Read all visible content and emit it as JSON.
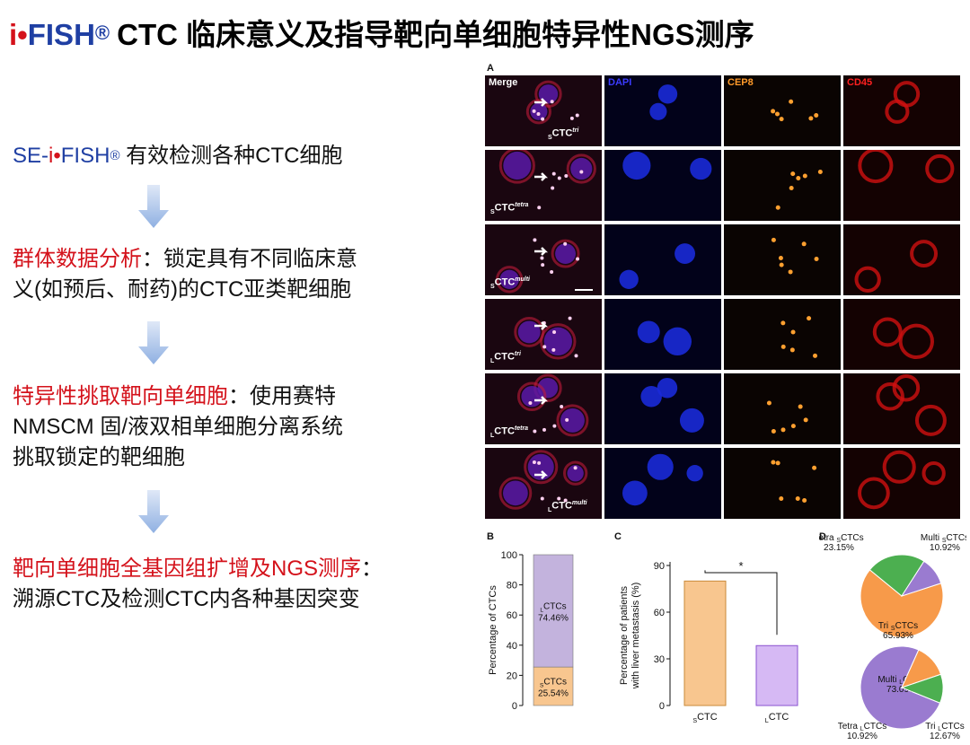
{
  "title": {
    "brand_i": "i",
    "brand_dot": "•",
    "brand_fish": "FISH",
    "brand_reg": "®",
    "text": "CTC 临床意义及指导靶向单细胞特异性NGS测序"
  },
  "steps": {
    "s1": {
      "pre": "SE-",
      "i": "i",
      "dot": "•",
      "fish": "FISH",
      "reg": "®",
      "rest": " 有效检测各种CTC细胞"
    },
    "s2": {
      "head": "群体数据分析",
      "colon": "：",
      "line1": "锁定具有不同临床意",
      "line2": "义(如预后、耐药)的CTC亚类靶细胞"
    },
    "s3": {
      "head": "特异性挑取靶向单细胞",
      "colon": "：",
      "line1": "使用赛特",
      "line2": "NMSCM 固/液双相单细胞分离系统",
      "line3": "挑取锁定的靶细胞"
    },
    "s4": {
      "head": "靶向单细胞全基因组扩增及NGS测序",
      "colon": "：",
      "line2": "溯源CTC及检测CTC内各种基因突变"
    }
  },
  "panel_a": {
    "label": "A",
    "channels": [
      {
        "name": "Merge",
        "color": "#ffffff"
      },
      {
        "name": "DAPI",
        "color": "#3b3bff"
      },
      {
        "name": "CEP8",
        "color": "#ff9a2a"
      },
      {
        "name": "CD45",
        "color": "#ff2020"
      }
    ],
    "rows": [
      {
        "sub": "S",
        "base": "CTC",
        "sup": "tri"
      },
      {
        "sub": "S",
        "base": "CTC",
        "sup": "tetra"
      },
      {
        "sub": "S",
        "base": "CTC",
        "sup": "multi"
      },
      {
        "sub": "L",
        "base": "CTC",
        "sup": "tri"
      },
      {
        "sub": "L",
        "base": "CTC",
        "sup": "tetra"
      },
      {
        "sub": "L",
        "base": "CTC",
        "sup": "multi"
      }
    ]
  },
  "chart_data": [
    {
      "panel": "B",
      "type": "bar",
      "stacked": true,
      "ylabel": "Percentage of CTCs",
      "ylim": [
        0,
        100
      ],
      "yticks": [
        0,
        20,
        40,
        60,
        80,
        100
      ],
      "series": [
        {
          "name": "SCTCs",
          "sub": "S",
          "base": "CTCs",
          "value": 25.54,
          "label": "25.54%",
          "color": "#f8c68f"
        },
        {
          "name": "LCTCs",
          "sub": "L",
          "base": "CTCs",
          "value": 74.46,
          "label": "74.46%",
          "color": "#c3b3dd"
        }
      ]
    },
    {
      "panel": "C",
      "type": "bar",
      "ylabel_line1": "Percentage of patients",
      "ylabel_line2": "with liver metastasis (%)",
      "ylim": [
        0,
        90
      ],
      "yticks": [
        0,
        30,
        60,
        90
      ],
      "significance": "*",
      "categories": [
        {
          "sub": "S",
          "base": "CTC",
          "value": 80,
          "color": "#f8c68f",
          "stroke": "#c98a3a"
        },
        {
          "sub": "L",
          "base": "CTC",
          "value": 38.5,
          "color": "#d6b9f4",
          "stroke": "#8a52d0"
        }
      ]
    },
    {
      "panel": "D",
      "type": "pie",
      "slices": [
        {
          "name": "Tri SCTCs",
          "prefix": "Tri ",
          "sub": "S",
          "base": "CTCs",
          "value": 65.93,
          "label": "65.93%",
          "color": "#f79a4a"
        },
        {
          "name": "Tetra SCTCs",
          "prefix": "Tetra ",
          "sub": "S",
          "base": "CTCs",
          "value": 23.15,
          "label": "23.15%",
          "color": "#4caf50"
        },
        {
          "name": "Multi SCTCs",
          "prefix": "Multi ",
          "sub": "S",
          "base": "CTCs",
          "value": 10.92,
          "label": "10.92%",
          "color": "#9a7bd0"
        }
      ]
    },
    {
      "panel": "D",
      "type": "pie",
      "slices": [
        {
          "name": "Multi LCTCs",
          "prefix": "Multi ",
          "sub": "L",
          "base": "CTCs",
          "value": 73.09,
          "label": "73.09%",
          "color": "#9a7bd0"
        },
        {
          "name": "Tri LCTCs",
          "prefix": "Tri ",
          "sub": "L",
          "base": "CTCs",
          "value": 12.67,
          "label": "12.67%",
          "color": "#f79a4a"
        },
        {
          "name": "Tetra LCTCs",
          "prefix": "Tetra ",
          "sub": "L",
          "base": "CTCs",
          "value": 10.92,
          "label": "10.92%",
          "color": "#4caf50"
        }
      ]
    }
  ],
  "colors": {
    "brand_red": "#d4121b",
    "brand_blue": "#1f3fa3",
    "arrow": "#9bb8e6"
  }
}
